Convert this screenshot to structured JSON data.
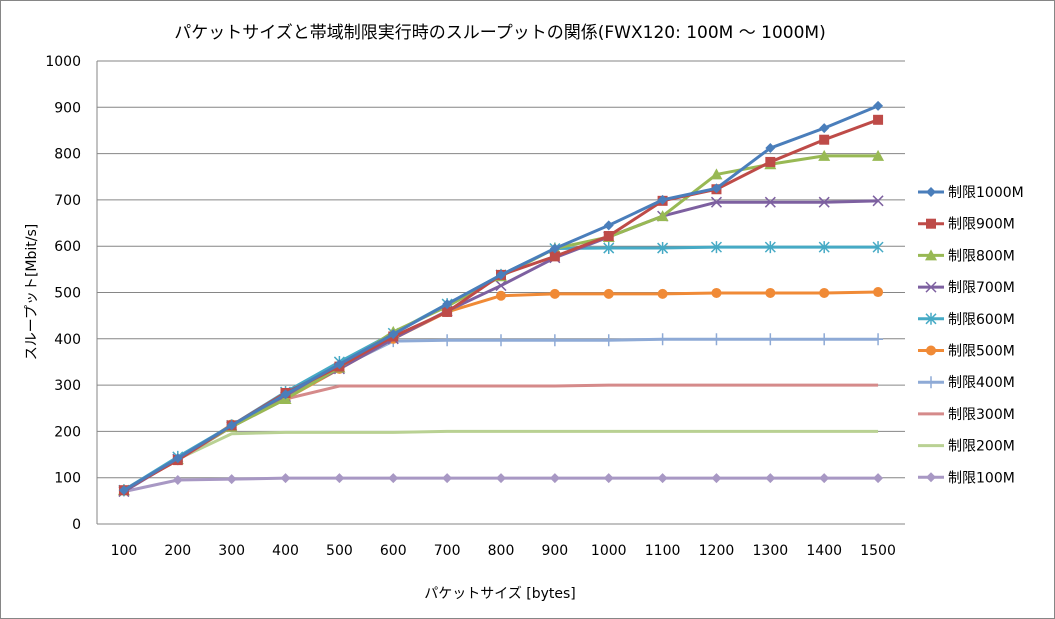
{
  "chart_data": {
    "type": "line",
    "title": "パケットサイズと帯域制限実行時のスループットの関係(FWX120: 100M 〜 1000M)",
    "xlabel": "パケットサイズ [bytes]",
    "ylabel": "スループット[Mbit/s]",
    "ylim": [
      0,
      1000
    ],
    "yticks": [
      0,
      100,
      200,
      300,
      400,
      500,
      600,
      700,
      800,
      900,
      1000
    ],
    "grid": true,
    "legend": "right",
    "categories": [
      "100",
      "200",
      "300",
      "400",
      "500",
      "600",
      "700",
      "800",
      "900",
      "1000",
      "1100",
      "1200",
      "1300",
      "1400",
      "1500"
    ],
    "series": [
      {
        "name": "制限1000M",
        "color": "#4a7ebb",
        "marker": "diamond",
        "values": [
          73,
          142,
          213,
          280,
          345,
          410,
          475,
          538,
          595,
          645,
          700,
          725,
          812,
          855,
          903
        ]
      },
      {
        "name": "制限900M",
        "color": "#be4b48",
        "marker": "square",
        "values": [
          73,
          138,
          213,
          283,
          340,
          405,
          458,
          538,
          578,
          622,
          698,
          723,
          782,
          830,
          873
        ]
      },
      {
        "name": "制限800M",
        "color": "#98b954",
        "marker": "triangle",
        "values": [
          73,
          140,
          210,
          270,
          338,
          415,
          470,
          535,
          595,
          620,
          665,
          755,
          777,
          795,
          795
        ]
      },
      {
        "name": "制限700M",
        "color": "#7d60a0",
        "marker": "x",
        "values": [
          70,
          140,
          210,
          275,
          335,
          400,
          460,
          515,
          575,
          620,
          665,
          695,
          695,
          695,
          698
        ]
      },
      {
        "name": "制限600M",
        "color": "#46aac5",
        "marker": "star",
        "values": [
          73,
          145,
          213,
          285,
          350,
          412,
          475,
          538,
          595,
          596,
          596,
          598,
          598,
          598,
          598
        ]
      },
      {
        "name": "制限500M",
        "color": "#f08a36",
        "marker": "circle",
        "values": [
          73,
          138,
          215,
          270,
          335,
          400,
          458,
          493,
          497,
          497,
          497,
          499,
          499,
          499,
          501
        ]
      },
      {
        "name": "制限400M",
        "color": "#8eaad6",
        "marker": "plus",
        "values": [
          73,
          140,
          213,
          280,
          338,
          395,
          397,
          397,
          397,
          397,
          399,
          399,
          399,
          399,
          399
        ]
      },
      {
        "name": "制限300M",
        "color": "#d58a8a",
        "marker": "none",
        "values": [
          73,
          138,
          210,
          270,
          298,
          298,
          298,
          298,
          298,
          300,
          300,
          300,
          300,
          300,
          300
        ]
      },
      {
        "name": "制限200M",
        "color": "#b9d193",
        "marker": "none",
        "values": [
          73,
          140,
          195,
          198,
          198,
          198,
          200,
          200,
          200,
          200,
          200,
          200,
          200,
          200,
          200
        ]
      },
      {
        "name": "制限100M",
        "color": "#a898c4",
        "marker": "diamond",
        "values": [
          70,
          95,
          97,
          99,
          99,
          99,
          99,
          99,
          99,
          99,
          99,
          99,
          99,
          99,
          99
        ]
      }
    ]
  }
}
